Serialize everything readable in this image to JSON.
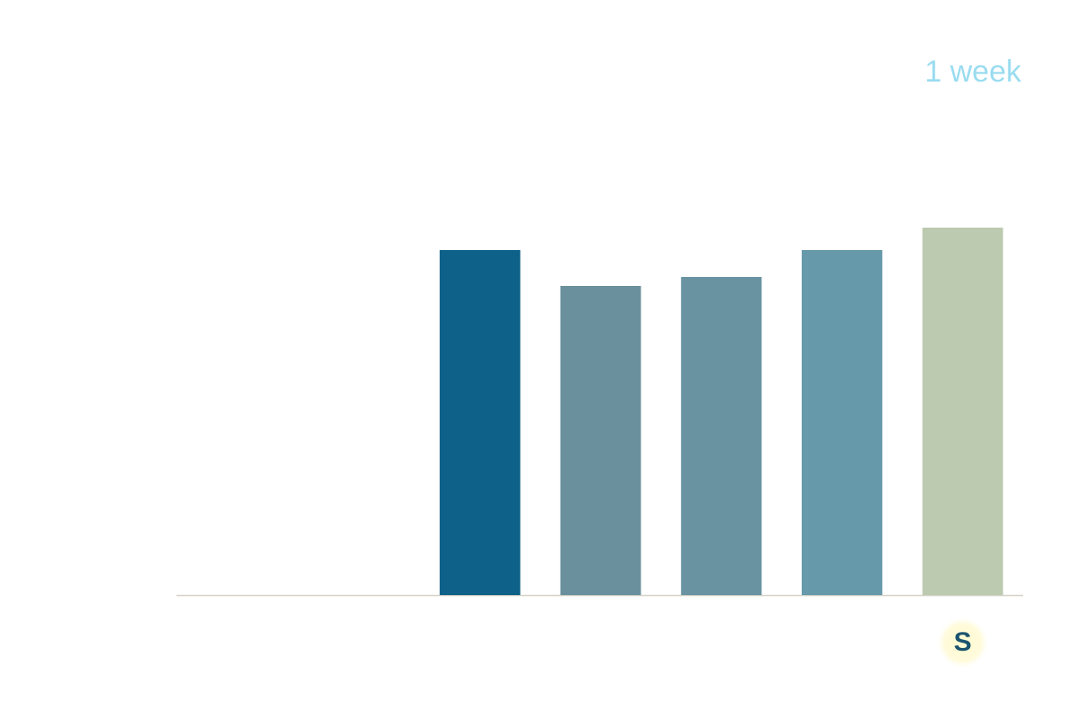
{
  "chart_data": {
    "type": "bar",
    "title": "1 week",
    "categories": [
      null,
      null,
      null,
      null,
      null,
      null,
      "S"
    ],
    "values": [
      null,
      null,
      385,
      345,
      355,
      385,
      410
    ],
    "colors": [
      "#0e6189",
      "#0e6189",
      "#0e6189",
      "#6a909d",
      "#6a93a2",
      "#6699aa",
      "#bccab0"
    ],
    "ylim": [
      0,
      500
    ]
  }
}
